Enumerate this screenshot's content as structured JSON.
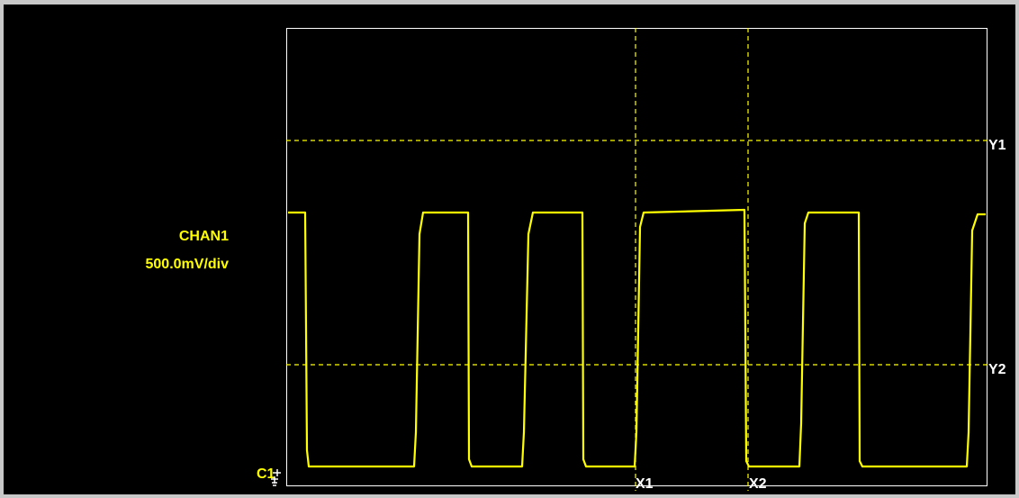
{
  "channel": {
    "name": "CHAN1",
    "scale": "500.0mV/div",
    "marker": "C1",
    "ground_icon": "ground-reference-icon",
    "color": "#ffff00"
  },
  "cursors": {
    "y1": "Y1",
    "y2": "Y2",
    "x1": "X1",
    "x2": "X2",
    "color": "#ffff00",
    "label_color": "#ffffff"
  },
  "display": {
    "background": "#000000",
    "frame_color": "#ffffff",
    "window_border": "#c8c8c8"
  }
}
